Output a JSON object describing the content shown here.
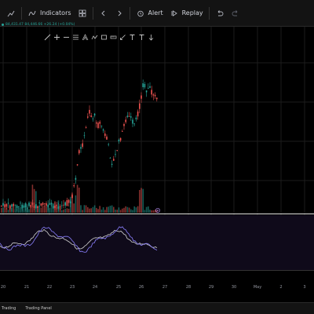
{
  "toolbar": {
    "indicators_label": "Indicators",
    "alert_label": "Alert",
    "replay_label": "Replay"
  },
  "legend": {
    "text": "84,431.47  84,446.66  +26.24 (+0.04%)"
  },
  "x_axis": {
    "labels": [
      "20",
      "21",
      "22",
      "23",
      "24",
      "25",
      "26",
      "27",
      "28",
      "29",
      "30",
      "May",
      "2",
      "3"
    ]
  },
  "bottom_tabs": [
    "Trading",
    "Trading Panel"
  ],
  "colors": {
    "up": "#26a69a",
    "down": "#ef5350",
    "panel_bg": "#0f0a1a",
    "oscillator_fast": "#8b80ff",
    "oscillator_slow": "#d0d0d0"
  }
}
